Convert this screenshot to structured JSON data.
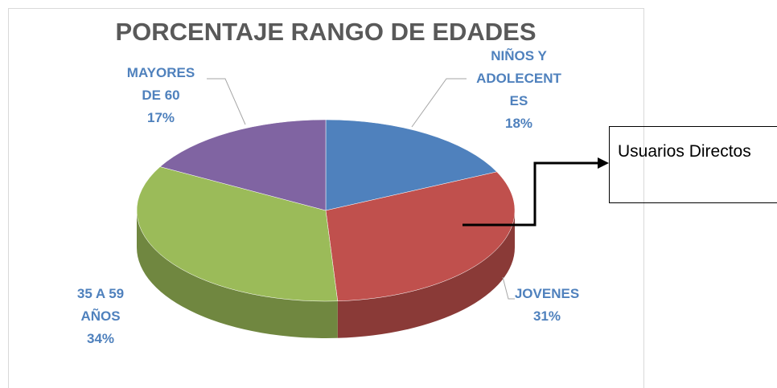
{
  "chart_data": {
    "type": "pie",
    "title": "PORCENTAJE RANGO DE EDADES",
    "categories": [
      "NIÑOS Y ADOLECENTES",
      "JOVENES",
      "35 A 59 AÑOS",
      "MAYORES DE 60"
    ],
    "values": [
      18,
      31,
      34,
      17
    ],
    "value_labels": [
      "18%",
      "31%",
      "34%",
      "17%"
    ],
    "colors": [
      "#4f81bd",
      "#c0504d",
      "#9bbb59",
      "#8064a2"
    ],
    "annotation": "Usuarios Directos"
  }
}
